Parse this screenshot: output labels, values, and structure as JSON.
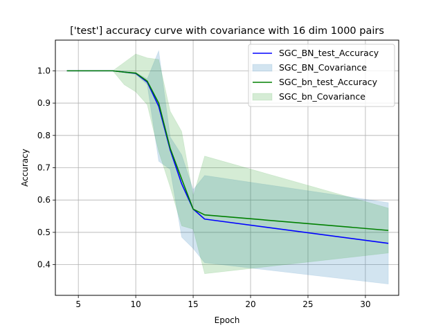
{
  "chart_data": {
    "type": "line",
    "title": "['test'] accuracy curve with covariance with 16 dim 1000 pairs",
    "xlabel": "Epoch",
    "ylabel": "Accuracy",
    "xlim": [
      3.0,
      32.9
    ],
    "ylim": [
      0.305,
      1.095
    ],
    "xticks": [
      5,
      10,
      15,
      20,
      25,
      30
    ],
    "yticks": [
      0.4,
      0.5,
      0.6,
      0.7,
      0.8,
      0.9,
      1.0
    ],
    "grid": true,
    "legend_position": "top-right",
    "series": [
      {
        "name": "SGC_BN_test_Accuracy",
        "kind": "line",
        "color": "#0000ff",
        "x": [
          4,
          5,
          6,
          7,
          8,
          9,
          10,
          11,
          12,
          13,
          14,
          15,
          16,
          32
        ],
        "y": [
          1.0,
          1.0,
          1.0,
          1.0,
          1.0,
          0.996,
          0.992,
          0.965,
          0.89,
          0.755,
          0.65,
          0.572,
          0.541,
          0.466
        ]
      },
      {
        "name": "SGC_BN_Covariance",
        "kind": "band",
        "color": "#1f77b4",
        "x": [
          4,
          5,
          6,
          7,
          8,
          9,
          10,
          11,
          12,
          13,
          14,
          15,
          16,
          32
        ],
        "upper": [
          1.0,
          1.0,
          1.0,
          1.0,
          1.0,
          0.999,
          0.995,
          0.975,
          1.062,
          0.795,
          0.74,
          0.632,
          0.676,
          0.592
        ],
        "lower": [
          1.0,
          1.0,
          1.0,
          1.0,
          1.0,
          0.994,
          0.989,
          0.957,
          0.72,
          0.695,
          0.485,
          0.45,
          0.406,
          0.34
        ]
      },
      {
        "name": "SGC_bn_test_Accuracy",
        "kind": "line",
        "color": "#008000",
        "x": [
          4,
          5,
          6,
          7,
          8,
          9,
          10,
          11,
          12,
          13,
          14,
          15,
          16,
          32
        ],
        "y": [
          1.0,
          1.0,
          1.0,
          1.0,
          1.0,
          0.996,
          0.993,
          0.968,
          0.9,
          0.76,
          0.665,
          0.572,
          0.554,
          0.506
        ]
      },
      {
        "name": "SGC_bn_Covariance",
        "kind": "band",
        "color": "#2ca02c",
        "x": [
          4,
          5,
          6,
          7,
          8,
          9,
          10,
          11,
          12,
          13,
          14,
          15,
          16,
          32
        ],
        "upper": [
          1.0,
          1.0,
          1.0,
          1.0,
          1.0,
          1.026,
          1.052,
          1.04,
          1.035,
          0.875,
          0.812,
          0.612,
          0.736,
          0.575
        ],
        "lower": [
          1.0,
          1.0,
          1.0,
          1.0,
          1.0,
          0.957,
          0.935,
          0.895,
          0.75,
          0.64,
          0.52,
          0.51,
          0.372,
          0.436
        ]
      }
    ]
  }
}
